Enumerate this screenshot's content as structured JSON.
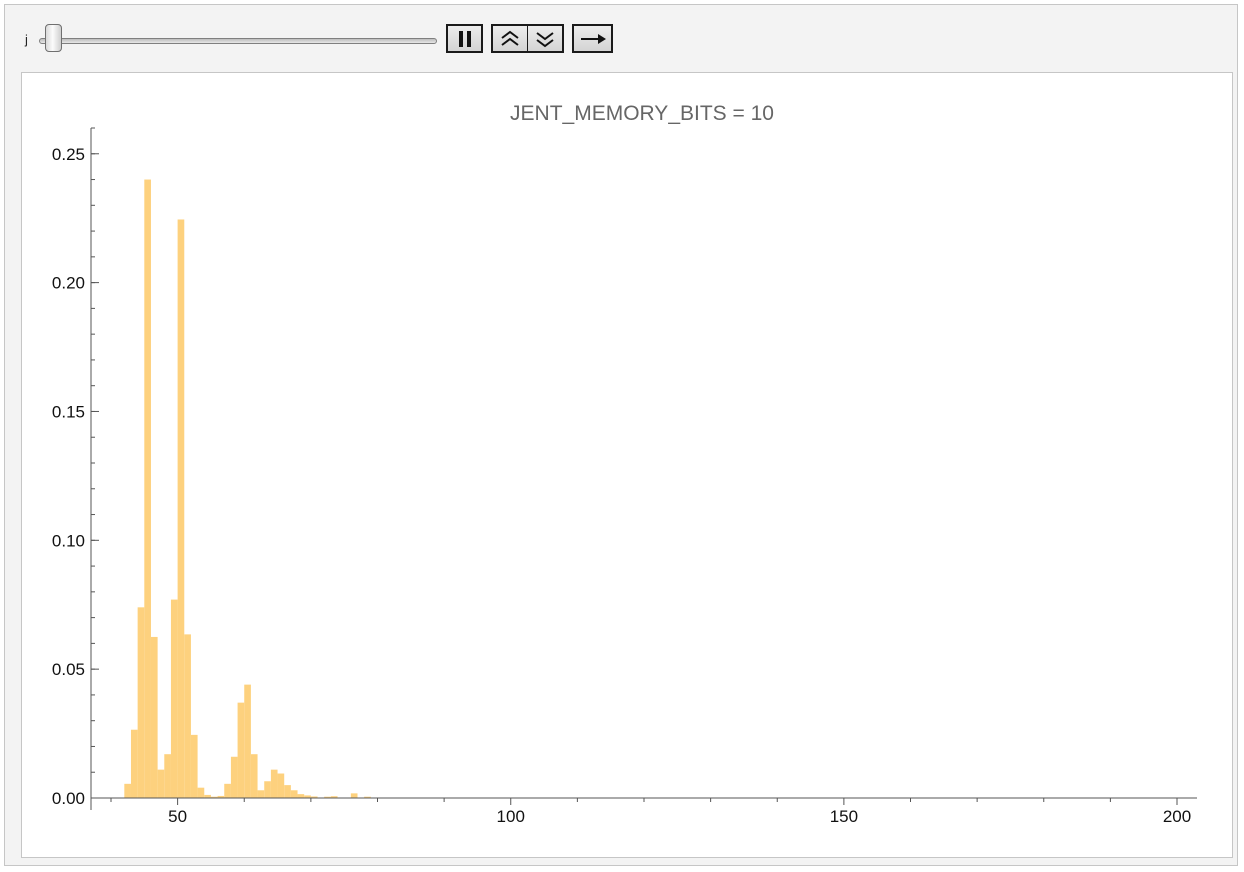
{
  "controls": {
    "slider_label": "j",
    "slider_value": 0,
    "pause_icon": "pause-icon",
    "faster_icon": "double-chevron-up-icon",
    "slower_icon": "double-chevron-down-icon",
    "direction_icon": "right-arrow-icon"
  },
  "colors": {
    "bar_fill": "#fdd17e",
    "frame_background": "#f3f3f3",
    "axis": "#555555"
  },
  "chart_data": {
    "type": "bar",
    "title": "JENT_MEMORY_BITS = 10",
    "xlabel": "",
    "ylabel": "",
    "xlim": [
      37,
      203
    ],
    "ylim": [
      0,
      0.26
    ],
    "bin_width": 1,
    "x_ticks": [
      50,
      100,
      150,
      200
    ],
    "x_tick_labels": [
      "50",
      "100",
      "150",
      "200"
    ],
    "x_minor_ticks": [
      40,
      60,
      70,
      80,
      90,
      110,
      120,
      130,
      140,
      160,
      170,
      180,
      190
    ],
    "y_ticks": [
      0,
      0.05,
      0.1,
      0.15,
      0.2,
      0.25
    ],
    "y_tick_labels": [
      "0.00",
      "0.05",
      "0.10",
      "0.15",
      "0.20",
      "0.25"
    ],
    "y_minor_step": 0.01,
    "grid": false,
    "bins": [
      {
        "x": 42,
        "y": 0.0055
      },
      {
        "x": 43,
        "y": 0.0265
      },
      {
        "x": 44,
        "y": 0.074
      },
      {
        "x": 45,
        "y": 0.24
      },
      {
        "x": 46,
        "y": 0.0625
      },
      {
        "x": 47,
        "y": 0.011
      },
      {
        "x": 48,
        "y": 0.017
      },
      {
        "x": 49,
        "y": 0.077
      },
      {
        "x": 50,
        "y": 0.2245
      },
      {
        "x": 51,
        "y": 0.0635
      },
      {
        "x": 52,
        "y": 0.0245
      },
      {
        "x": 53,
        "y": 0.004
      },
      {
        "x": 54,
        "y": 0.0012
      },
      {
        "x": 55,
        "y": 0.0005
      },
      {
        "x": 56,
        "y": 0.0008
      },
      {
        "x": 57,
        "y": 0.0055
      },
      {
        "x": 58,
        "y": 0.016
      },
      {
        "x": 59,
        "y": 0.037
      },
      {
        "x": 60,
        "y": 0.044
      },
      {
        "x": 61,
        "y": 0.017
      },
      {
        "x": 62,
        "y": 0.003
      },
      {
        "x": 63,
        "y": 0.0065
      },
      {
        "x": 64,
        "y": 0.011
      },
      {
        "x": 65,
        "y": 0.0095
      },
      {
        "x": 66,
        "y": 0.005
      },
      {
        "x": 67,
        "y": 0.003
      },
      {
        "x": 68,
        "y": 0.0015
      },
      {
        "x": 69,
        "y": 0.001
      },
      {
        "x": 70,
        "y": 0.0006
      },
      {
        "x": 72,
        "y": 0.0005
      },
      {
        "x": 73,
        "y": 0.0007
      },
      {
        "x": 76,
        "y": 0.0018
      },
      {
        "x": 78,
        "y": 0.0005
      }
    ]
  }
}
